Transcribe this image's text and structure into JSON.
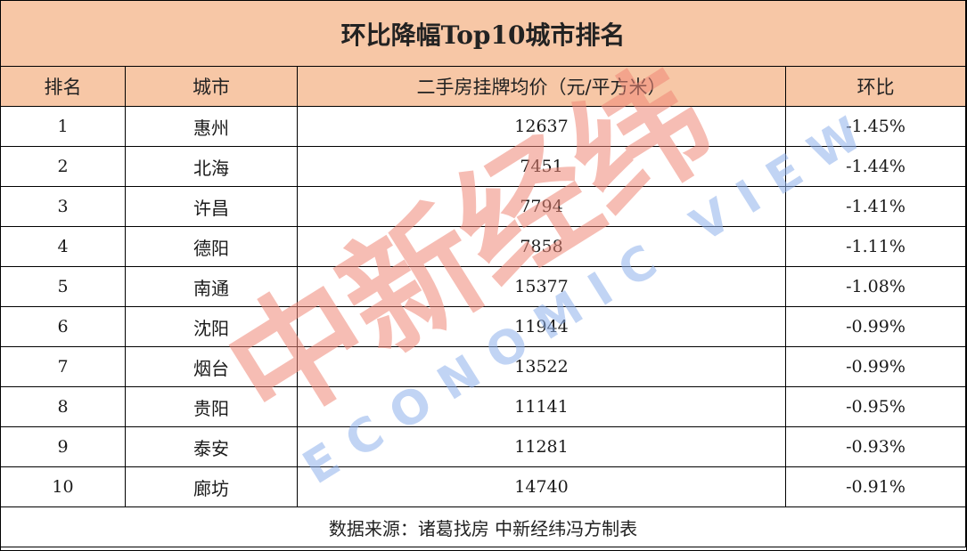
{
  "chart_data": {
    "type": "table",
    "title": "环比降幅Top10城市排名",
    "columns": [
      "排名",
      "城市",
      "二手房挂牌均价（元/平方米）",
      "环比"
    ],
    "rows": [
      {
        "rank": "1",
        "city": "惠州",
        "price": "12637",
        "mom": "-1.45%"
      },
      {
        "rank": "2",
        "city": "北海",
        "price": "7451",
        "mom": "-1.44%"
      },
      {
        "rank": "3",
        "city": "许昌",
        "price": "7794",
        "mom": "-1.41%"
      },
      {
        "rank": "4",
        "city": "德阳",
        "price": "7858",
        "mom": "-1.11%"
      },
      {
        "rank": "5",
        "city": "南通",
        "price": "15377",
        "mom": "-1.08%"
      },
      {
        "rank": "6",
        "city": "沈阳",
        "price": "11944",
        "mom": "-0.99%"
      },
      {
        "rank": "7",
        "city": "烟台",
        "price": "13522",
        "mom": "-0.99%"
      },
      {
        "rank": "8",
        "city": "贵阳",
        "price": "11141",
        "mom": "-0.95%"
      },
      {
        "rank": "9",
        "city": "泰安",
        "price": "11281",
        "mom": "-0.93%"
      },
      {
        "rank": "10",
        "city": "廊坊",
        "price": "14740",
        "mom": "-0.91%"
      }
    ],
    "footer": "数据来源：诸葛找房 中新经纬冯方制表"
  },
  "watermark": {
    "logo_text": "中新经纬",
    "english_text": "ECONOMIC VIEW",
    "colors": {
      "red": "#f08878",
      "blue": "#8fb1ec"
    }
  },
  "colors": {
    "header_bg": "#f7c7a6",
    "border": "#000000"
  }
}
